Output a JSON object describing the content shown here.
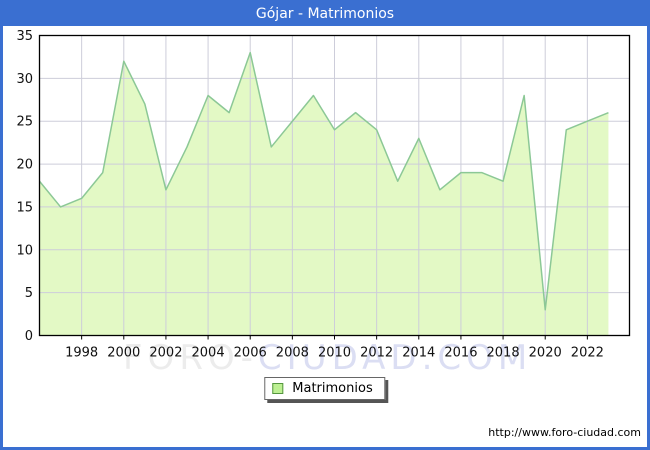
{
  "window": {
    "title": "Gójar - Matrimonios"
  },
  "chart_data": {
    "type": "area",
    "title": "Gójar - Matrimonios",
    "x": [
      1996,
      1997,
      1998,
      1999,
      2000,
      2001,
      2002,
      2003,
      2004,
      2005,
      2006,
      2007,
      2008,
      2009,
      2010,
      2011,
      2012,
      2013,
      2014,
      2015,
      2016,
      2017,
      2018,
      2019,
      2020,
      2021,
      2022,
      2023
    ],
    "series": [
      {
        "name": "Matrimonios",
        "values": [
          18,
          15,
          16,
          19,
          32,
          27,
          17,
          22,
          28,
          26,
          33,
          22,
          25,
          28,
          24,
          26,
          24,
          18,
          23,
          17,
          19,
          19,
          18,
          28,
          3,
          24,
          25,
          26
        ]
      }
    ],
    "xlabel": "",
    "ylabel": "",
    "x_range": [
      1996,
      2024
    ],
    "ylim": [
      0,
      35
    ],
    "y_ticks": [
      0,
      5,
      10,
      15,
      20,
      25,
      30,
      35
    ],
    "x_ticks": [
      1998,
      2000,
      2002,
      2004,
      2006,
      2008,
      2010,
      2012,
      2014,
      2016,
      2018,
      2020,
      2022
    ],
    "grid": true,
    "legend_position": "bottom-center"
  },
  "legend": {
    "label": "Matrimonios"
  },
  "watermark": {
    "part1": "FORO-",
    "part2": "CIUDAD.COM"
  },
  "footer": {
    "url": "http://www.foro-ciudad.com"
  },
  "colors": {
    "titlebar_bg": "#3A6FD1",
    "frame_border": "#3A6FD1",
    "area_fill": "#E3F9C5",
    "series_line": "#8CC896",
    "gridline": "#CDCDDA",
    "plot_border": "#000000",
    "axis_text": "#111111",
    "legend_swatch_fill": "#BDF093",
    "legend_swatch_border": "#55963F",
    "watermark_foro": "#ECECEC",
    "watermark_ciudad": "#DBDEF3",
    "footer_text": "#000000"
  }
}
